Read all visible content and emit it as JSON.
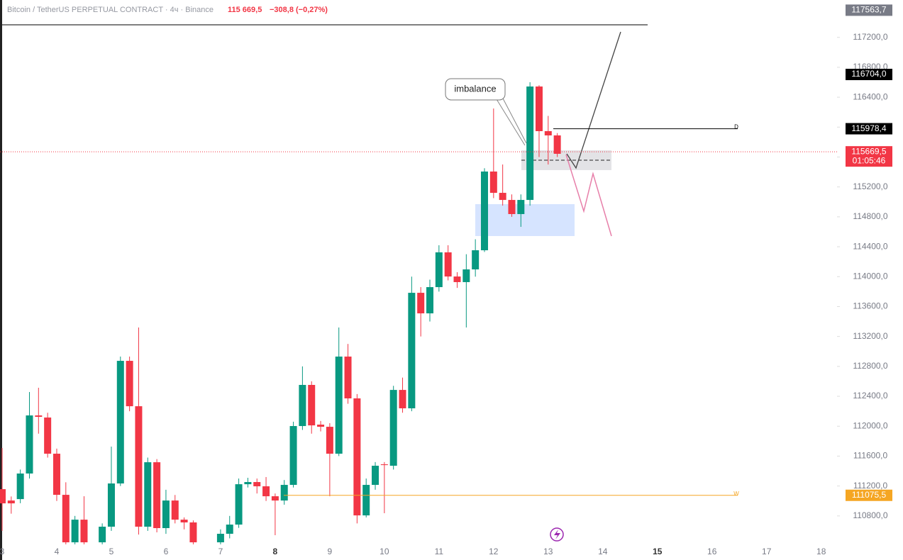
{
  "chart_data": {
    "type": "candlestick",
    "title": "Bitcoin / TetherUS PERPETUAL CONTRACT · 4ч · Binance",
    "header_price": "115 669,5",
    "header_change": "−308,8 (−0,27%)",
    "annotation": "imbalance",
    "colors": {
      "up": "#089981",
      "down": "#f23645"
    },
    "ylim": [
      110400,
      117700
    ],
    "yticks": [
      {
        "value": 117200,
        "label": "117200,0"
      },
      {
        "value": 116800,
        "label": "116800,0"
      },
      {
        "value": 116400,
        "label": "116400,0"
      },
      {
        "value": 116000,
        "label": "116000,0"
      },
      {
        "value": 115600,
        "label": "115600,0"
      },
      {
        "value": 115200,
        "label": "115200,0"
      },
      {
        "value": 114800,
        "label": "114800,0"
      },
      {
        "value": 114400,
        "label": "114400,0"
      },
      {
        "value": 114000,
        "label": "114000,0"
      },
      {
        "value": 113600,
        "label": "113600,0"
      },
      {
        "value": 113200,
        "label": "113200,0"
      },
      {
        "value": 112800,
        "label": "112800,0"
      },
      {
        "value": 112400,
        "label": "112400,0"
      },
      {
        "value": 112000,
        "label": "112000,0"
      },
      {
        "value": 111600,
        "label": "111600,0"
      },
      {
        "value": 111200,
        "label": "111200,0"
      },
      {
        "value": 110800,
        "label": "110800,0"
      }
    ],
    "xticks": [
      "3",
      "4",
      "5",
      "6",
      "7",
      "8",
      "9",
      "10",
      "11",
      "12",
      "13",
      "14",
      "15",
      "16",
      "17",
      "18"
    ],
    "price_tags": [
      {
        "value": 117563.7,
        "label": "117563,7",
        "color": "#787b86"
      },
      {
        "value": 116704.0,
        "label": "116704,0",
        "color": "#000000"
      },
      {
        "value": 115978.4,
        "label": "115978,4",
        "color": "#000000",
        "marker": "D"
      },
      {
        "value": 115669.5,
        "label": "115669,5",
        "color": "#f23645",
        "timer": "01:05:46"
      },
      {
        "value": 111075.5,
        "label": "111075,5",
        "color": "#f5a623",
        "marker": "W"
      }
    ],
    "open": [
      111158,
      111006,
      111025,
      111367,
      112144,
      112116,
      111632,
      111082,
      110447,
      110750,
      null,
      110447,
      110656,
      111234,
      112874,
      112267,
      110656,
      111518,
      110637,
      111006,
      110750,
      110713,
      null,
      null,
      110447,
      110561,
      110684,
      111224,
      111253,
      111196,
      111063,
      111006,
      111215,
      112002,
      112552,
      112021,
      111992,
      111632,
      112931,
      112372,
      110807,
      111215,
      111490,
      111471,
      112485,
      112239,
      113784,
      113509,
      113860,
      114325,
      114002,
      113927,
      114097,
      114353,
      115406,
      115121,
      115026,
      114837,
      115026,
      116543,
      115946,
      115889
    ],
    "close": [
      110968,
      110968,
      111367,
      112144,
      112125,
      111632,
      111082,
      110447,
      110750,
      110447,
      null,
      110656,
      111234,
      112874,
      112267,
      110656,
      111518,
      110637,
      111006,
      110750,
      110713,
      110447,
      null,
      null,
      110561,
      110684,
      111224,
      111253,
      111196,
      111063,
      111006,
      111215,
      112002,
      112552,
      112011,
      111992,
      111632,
      112931,
      112372,
      110807,
      111215,
      111471,
      111480,
      112485,
      112239,
      113784,
      113509,
      113860,
      114325,
      114002,
      113927,
      114097,
      114353,
      115406,
      115121,
      115026,
      114837,
      115026,
      116543,
      115946,
      115889,
      115643
    ],
    "high": [
      111708,
      111060,
      111420,
      112457,
      112514,
      112180,
      111700,
      111250,
      110800,
      111063,
      null,
      110700,
      111727,
      112931,
      112931,
      113320,
      111580,
      111560,
      111150,
      111080,
      110780,
      110740,
      null,
      null,
      110620,
      110800,
      111300,
      111310,
      111300,
      111320,
      111100,
      111280,
      112060,
      112800,
      112600,
      112070,
      112040,
      113320,
      113100,
      112430,
      111300,
      111520,
      111520,
      112540,
      112650,
      114000,
      113860,
      113960,
      114420,
      114420,
      114060,
      114300,
      114500,
      115450,
      116249,
      115500,
      115100,
      115100,
      116600,
      116560,
      116150,
      115920
    ],
    "low": [
      110600,
      110830,
      110970,
      111300,
      111900,
      111580,
      111000,
      110420,
      110420,
      110420,
      null,
      110420,
      110600,
      111200,
      112200,
      110550,
      110600,
      110580,
      110560,
      110700,
      110620,
      110420,
      null,
      null,
      110420,
      110500,
      110640,
      111180,
      111100,
      111000,
      110542,
      110950,
      111180,
      111950,
      111900,
      111930,
      111063,
      111600,
      112300,
      110700,
      110780,
      111150,
      110836,
      111420,
      112180,
      112200,
      113200,
      113400,
      113800,
      113950,
      113850,
      113320,
      114000,
      114330,
      115050,
      114950,
      114800,
      114666,
      114950,
      115600,
      115500,
      115600
    ]
  }
}
